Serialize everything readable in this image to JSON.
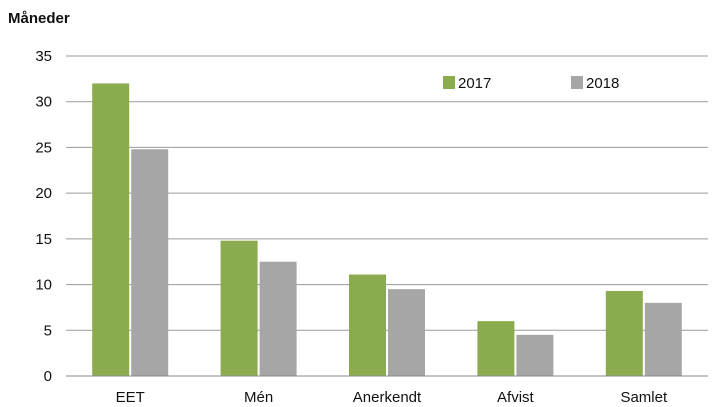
{
  "chart_data": {
    "type": "bar",
    "title": "",
    "xlabel": "",
    "ylabel": "Måneder",
    "ylim": [
      0,
      35
    ],
    "yticks": [
      0,
      5,
      10,
      15,
      20,
      25,
      30,
      35
    ],
    "grid": true,
    "legend_position": "top-right",
    "categories": [
      "EET",
      "Mén",
      "Anerkendt",
      "Afvist",
      "Samlet"
    ],
    "series": [
      {
        "name": "2017",
        "color": "#8aab4e",
        "values": [
          32,
          14.8,
          11.1,
          6.0,
          9.3
        ]
      },
      {
        "name": "2018",
        "color": "#a6a6a6",
        "values": [
          24.8,
          12.5,
          9.5,
          4.5,
          8.0
        ]
      }
    ]
  }
}
